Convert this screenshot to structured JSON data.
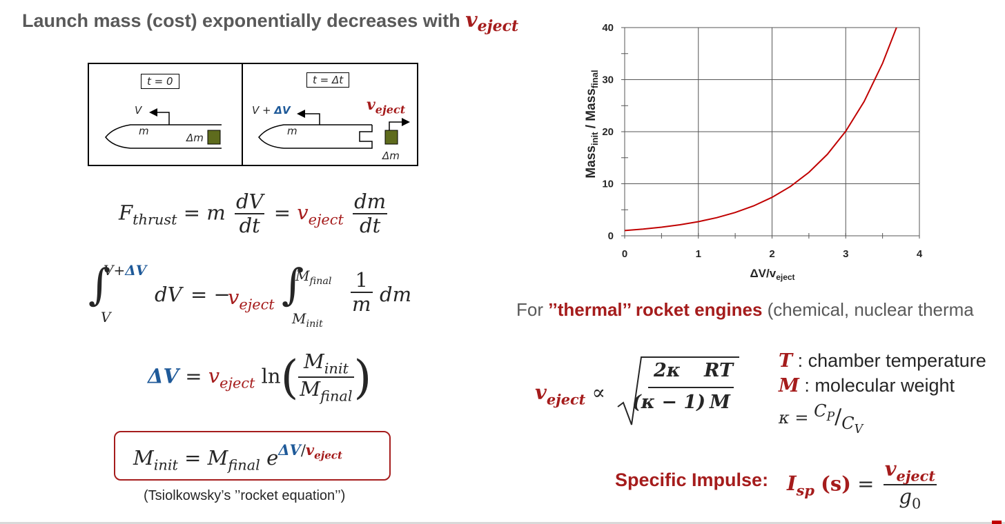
{
  "title": {
    "text": "Launch mass (cost) exponentially decreases with",
    "v_symbol": "v",
    "v_subscript": "eject"
  },
  "diagram": {
    "left_panel": {
      "time_label": "t = 0",
      "velocity_label": "V",
      "mass_label": "m",
      "dm_label": "Δm"
    },
    "right_panel": {
      "time_label": "t = Δt",
      "velocity_label": "V + ",
      "delta_v_label": "ΔV",
      "mass_label": "m",
      "dm_label": "Δm",
      "eject_symbol": "v",
      "eject_subscript": "eject"
    }
  },
  "equations": {
    "thrust": {
      "F": "F",
      "F_sub": "thrust",
      "eq": "=",
      "m": "m",
      "dV": "dV",
      "dt": "dt",
      "v": "v",
      "v_sub": "eject",
      "dm": "dm"
    },
    "integral": {
      "upper_1": "V+",
      "upper_2": "ΔV",
      "lower_1": "V",
      "dV": "dV",
      "eq": "= −",
      "v": "v",
      "v_sub": "eject",
      "upper_2_M": "M",
      "upper_2_sub": "final",
      "lower_2_M": "M",
      "lower_2_sub": "init",
      "one": "1",
      "m": "m",
      "dm": "dm"
    },
    "delta_v": {
      "dv": "ΔV",
      "eq": "=",
      "v": "v",
      "v_sub": "eject",
      "ln": "ln",
      "num_M": "M",
      "num_sub": "init",
      "den_M": "M",
      "den_sub": "final"
    },
    "rocket": {
      "M": "M",
      "M_sub": "init",
      "eq": "=",
      "M2": "M",
      "M2_sub": "final",
      "e": "e",
      "exp_dv": "ΔV",
      "exp_slash": "/",
      "exp_v": "v",
      "exp_sub": "eject"
    },
    "caption": "(Tsiolkowsky’s ’’rocket equation’’)"
  },
  "chart_data": {
    "type": "line",
    "title": "",
    "xlabel": "ΔV/v",
    "xlabel_sub": "eject",
    "ylabel": "Mass",
    "ylabel_sub1": "init",
    "ylabel_mid": " / Mass",
    "ylabel_sub2": "final",
    "xlim": [
      0,
      4
    ],
    "ylim": [
      0,
      40
    ],
    "x_ticks": [
      "0",
      "1",
      "2",
      "3",
      "4"
    ],
    "y_ticks": [
      "0",
      "10",
      "20",
      "30",
      "40"
    ],
    "grid": true,
    "line_color": "#c00000",
    "series": [
      {
        "x": [
          0,
          0.25,
          0.5,
          0.75,
          1.0,
          1.25,
          1.5,
          1.75,
          2.0,
          2.25,
          2.5,
          2.75,
          3.0,
          3.25,
          3.5,
          3.689
        ],
        "y": [
          1.0,
          1.28,
          1.65,
          2.12,
          2.72,
          3.49,
          4.48,
          5.75,
          7.39,
          9.49,
          12.18,
          15.64,
          20.09,
          25.79,
          33.12,
          40.0
        ]
      }
    ]
  },
  "thermal": {
    "prefix": "For ",
    "highlight": "’’thermal’’ rocket engines",
    "suffix": " (chemical, nuclear therma",
    "formula": {
      "v": "v",
      "v_sub": "eject",
      "prop": "∝",
      "num_a": "2κ",
      "num_b": "RT",
      "num_b_T": "",
      "den_a": "(κ − 1)",
      "den_b": "M"
    },
    "legend": [
      {
        "symbol": "T",
        "text": " : chamber temperature"
      },
      {
        "symbol": "M",
        "text": " : molecular weight"
      }
    ],
    "kappa": {
      "k": "κ",
      "eq": "=",
      "cp": "C",
      "cp_sub": "P",
      "cv": "C",
      "cv_sub": "V",
      "slash": "/"
    }
  },
  "specific_impulse": {
    "label": "Specific Impulse:",
    "I": "I",
    "I_sub": "sp",
    "unit": "(s)",
    "eq": "=",
    "num_v": "v",
    "num_sub": "eject",
    "den_g": "g",
    "den_sub": "0"
  }
}
